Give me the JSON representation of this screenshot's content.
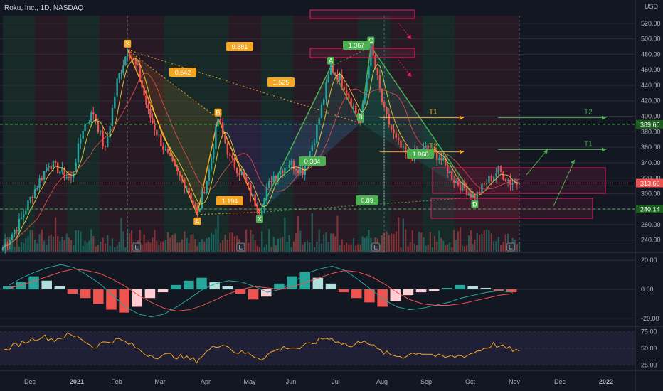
{
  "header": {
    "symbol_title": "Roku, Inc., 1D, NASDAQ",
    "currency": "USD"
  },
  "colors": {
    "bg": "#131722",
    "up": "#26a69a",
    "down": "#ef5350",
    "orange": "#f5a623",
    "green_label": "#4caf50",
    "pink": "#e91e63",
    "grid": "#2a2e39",
    "text": "#b2b5be"
  },
  "chart_data": [
    {
      "type": "candlestick",
      "panel": "price",
      "title": "Roku, Inc., 1D, NASDAQ",
      "x_ticks": [
        "Dec",
        "2021",
        "Feb",
        "Mar",
        "Apr",
        "May",
        "Jun",
        "Jul",
        "Aug",
        "Sep",
        "Oct",
        "Nov",
        "Dec",
        "2022"
      ],
      "y_ticks": [
        240,
        260,
        280,
        300,
        320,
        340,
        360,
        380,
        400,
        420,
        440,
        460,
        480,
        500,
        520
      ],
      "ylim": [
        225,
        530
      ],
      "price_labels": [
        {
          "text": "389.60",
          "value": 389.6,
          "color": "green"
        },
        {
          "text": "313.66",
          "value": 313.66,
          "color": "red"
        },
        {
          "text": "280.14",
          "value": 280.14,
          "color": "green"
        }
      ],
      "pattern_points": [
        {
          "label": "X",
          "date": "2021-02-12",
          "price": 486,
          "color": "orange"
        },
        {
          "label": "A",
          "date": "2021-03-31",
          "price": 273,
          "color": "orange"
        },
        {
          "label": "B",
          "date": "2021-04-14",
          "price": 397,
          "color": "orange"
        },
        {
          "label": "X",
          "date": "2021-05-12",
          "price": 276,
          "color": "green"
        },
        {
          "label": "A",
          "date": "2021-06-29",
          "price": 464,
          "color": "green"
        },
        {
          "label": "B",
          "date": "2021-07-19",
          "price": 391,
          "color": "green"
        },
        {
          "label": "C",
          "date": "2021-07-26",
          "price": 490,
          "color": "green"
        },
        {
          "label": "D",
          "date": "2021-10-04",
          "price": 295,
          "color": "green"
        }
      ],
      "ratio_labels": [
        {
          "text": "0.881",
          "color": "orange"
        },
        {
          "text": "0.542",
          "color": "orange"
        },
        {
          "text": "1.525",
          "color": "orange"
        },
        {
          "text": "1.194",
          "color": "orange"
        },
        {
          "text": "1.367",
          "color": "green"
        },
        {
          "text": "0.384",
          "color": "green"
        },
        {
          "text": "1.966",
          "color": "green"
        },
        {
          "text": "0.89",
          "color": "green"
        }
      ],
      "targets": [
        {
          "text": "T1",
          "color": "orange"
        },
        {
          "text": "T2",
          "color": "orange"
        },
        {
          "text": "T2",
          "color": "green"
        },
        {
          "text": "T1",
          "color": "green"
        }
      ],
      "earnings_markers": [
        "E",
        "E",
        "E",
        "E"
      ],
      "series": [
        {
          "name": "close",
          "dates": [
            "2020-11-20",
            "2020-12-01",
            "2020-12-10",
            "2020-12-21",
            "2021-01-05",
            "2021-01-13",
            "2021-01-20",
            "2021-01-28",
            "2021-02-05",
            "2021-02-12",
            "2021-02-19",
            "2021-02-26",
            "2021-03-08",
            "2021-03-16",
            "2021-03-24",
            "2021-03-31",
            "2021-04-08",
            "2021-04-14",
            "2021-04-22",
            "2021-04-30",
            "2021-05-12",
            "2021-05-20",
            "2021-06-01",
            "2021-06-10",
            "2021-06-18",
            "2021-06-29",
            "2021-07-08",
            "2021-07-19",
            "2021-07-26",
            "2021-08-04",
            "2021-08-12",
            "2021-08-20",
            "2021-09-01",
            "2021-09-10",
            "2021-09-20",
            "2021-09-30",
            "2021-10-04",
            "2021-10-12",
            "2021-10-20",
            "2021-10-28",
            "2021-11-03"
          ],
          "values": [
            230,
            262,
            300,
            340,
            318,
            385,
            405,
            355,
            445,
            486,
            460,
            405,
            360,
            330,
            310,
            273,
            330,
            397,
            345,
            325,
            276,
            320,
            340,
            330,
            372,
            464,
            440,
            391,
            490,
            405,
            368,
            345,
            358,
            348,
            318,
            302,
            295,
            315,
            330,
            315,
            313.66
          ]
        }
      ]
    },
    {
      "type": "histogram+line",
      "panel": "macd",
      "y_ticks": [
        20,
        0,
        -20
      ],
      "ylim": [
        -25,
        25
      ],
      "series": [
        {
          "name": "histogram",
          "values": [
            2,
            5,
            9,
            6,
            2,
            -3,
            -6,
            -10,
            -14,
            -16,
            -12,
            -6,
            -2,
            3,
            6,
            8,
            5,
            2,
            -3,
            -7,
            -5,
            4,
            9,
            12,
            8,
            4,
            -2,
            -6,
            -9,
            -12,
            -8,
            -4,
            -2,
            -1,
            1,
            3,
            2,
            1,
            -1,
            -2
          ]
        },
        {
          "name": "macd",
          "values": [
            3,
            8,
            12,
            15,
            17,
            15,
            10,
            4,
            -4,
            -12,
            -17,
            -19,
            -17,
            -12,
            -6,
            0,
            4,
            6,
            5,
            2,
            -2,
            0,
            5,
            11,
            14,
            16,
            13,
            7,
            0,
            -7,
            -12,
            -14,
            -13,
            -11,
            -9,
            -6,
            -4,
            -2,
            -1,
            -2
          ]
        },
        {
          "name": "signal",
          "values": [
            1,
            3,
            6,
            9,
            12,
            14,
            13,
            11,
            7,
            2,
            -4,
            -9,
            -13,
            -15,
            -14,
            -11,
            -7,
            -3,
            0,
            2,
            1,
            0,
            2,
            5,
            8,
            11,
            13,
            12,
            9,
            4,
            -2,
            -7,
            -10,
            -11,
            -11,
            -10,
            -8,
            -6,
            -4,
            -3
          ]
        }
      ]
    },
    {
      "type": "line",
      "panel": "rsi",
      "y_ticks": [
        75,
        50,
        25
      ],
      "ylim": [
        18,
        82
      ],
      "series": [
        {
          "name": "rsi",
          "values": [
            45,
            55,
            62,
            68,
            63,
            70,
            66,
            52,
            60,
            63,
            55,
            42,
            38,
            40,
            36,
            32,
            48,
            58,
            45,
            42,
            35,
            46,
            52,
            50,
            58,
            66,
            61,
            52,
            64,
            48,
            40,
            38,
            44,
            42,
            36,
            38,
            40,
            48,
            56,
            50,
            46
          ]
        }
      ]
    }
  ]
}
